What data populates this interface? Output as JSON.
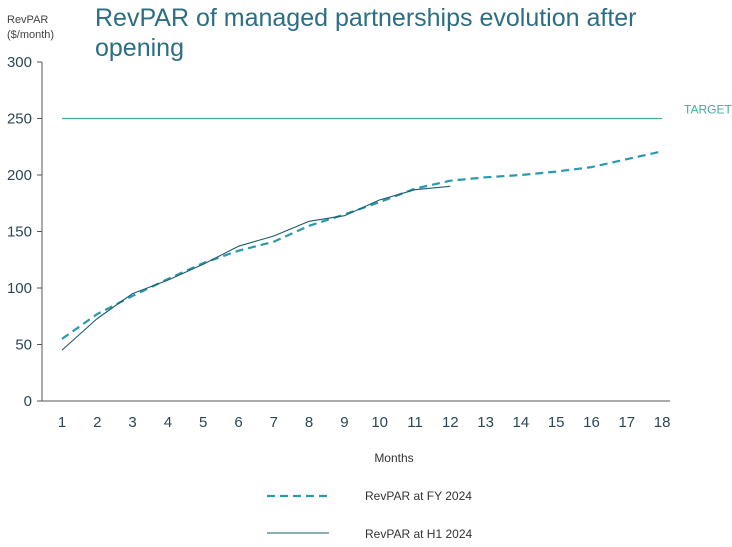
{
  "chart_data": {
    "type": "line",
    "title_lines": [
      "RevPAR of managed partnerships evolution after",
      "opening"
    ],
    "ylabel_lines": [
      "RevPAR",
      "($/month)"
    ],
    "xlabel": "Months",
    "x": [
      1,
      2,
      3,
      4,
      5,
      6,
      7,
      8,
      9,
      10,
      11,
      12,
      13,
      14,
      15,
      16,
      17,
      18
    ],
    "ylim": [
      0,
      300
    ],
    "yticks": [
      0,
      50,
      100,
      150,
      200,
      250,
      300
    ],
    "target": {
      "value": 250,
      "label": "TARGET"
    },
    "series": [
      {
        "name": "RevPAR at FY 2024",
        "style": "dashed",
        "color": "#2a9aac",
        "x": [
          1,
          2,
          3,
          4,
          5,
          6,
          7,
          8,
          9,
          10,
          11,
          12,
          13,
          14,
          15,
          16,
          17,
          18
        ],
        "values": [
          55,
          77,
          93,
          108,
          122,
          133,
          141,
          155,
          165,
          176,
          188,
          195,
          198,
          200,
          203,
          207,
          214,
          221
        ]
      },
      {
        "name": "RevPAR at H1 2024",
        "style": "solid",
        "color": "#1e5c6e",
        "x": [
          1,
          2,
          3,
          4,
          5,
          6,
          7,
          8,
          9,
          10,
          11,
          12
        ],
        "values": [
          45,
          73,
          95,
          107,
          121,
          137,
          146,
          159,
          164,
          178,
          187,
          190
        ]
      }
    ],
    "colors": {
      "title": "#2d6e82",
      "target": "#3fae9f",
      "axis": "#555555",
      "tick_text": "#2d4654"
    }
  }
}
